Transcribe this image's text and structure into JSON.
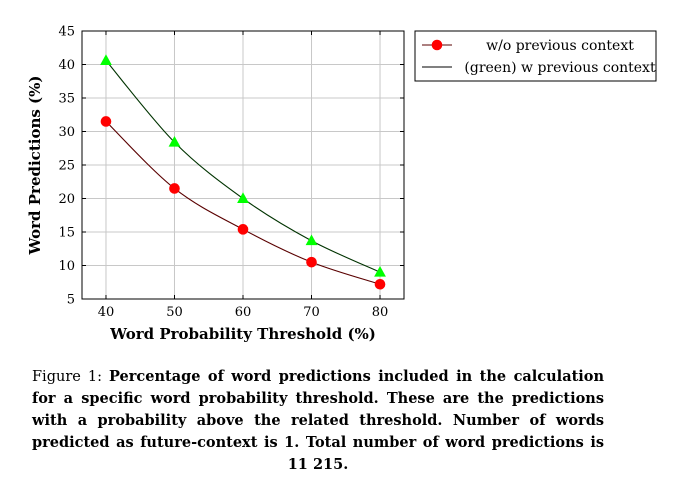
{
  "chart_data": {
    "type": "line",
    "xlabel": "Word Probability Threshold (%)",
    "ylabel": "Word Predictions (%)",
    "x": [
      40,
      50,
      60,
      70,
      80
    ],
    "xlim": [
      36.5,
      83.5
    ],
    "ylim": [
      5,
      45
    ],
    "xticks": [
      40,
      50,
      60,
      70,
      80
    ],
    "yticks": [
      5,
      10,
      15,
      20,
      25,
      30,
      35,
      40,
      45
    ],
    "grid": true,
    "legend_position": "outside-top-right",
    "series": [
      {
        "name": "w/o previous context",
        "values": [
          31.5,
          21.5,
          15.4,
          10.5,
          7.2
        ],
        "line_color": "#5a0000",
        "marker": "circle",
        "marker_color": "#ff0000"
      },
      {
        "name": "(green) w previous context",
        "values": [
          40.6,
          28.4,
          20.0,
          13.7,
          9.0
        ],
        "line_color": "#003300",
        "marker": "triangle",
        "marker_color": "#00ff00"
      }
    ]
  },
  "caption": {
    "prefix": "Figure 1:",
    "text": "Percentage of word predictions included in the calculation for a specific word probability threshold. These are the predictions with a probability above the related threshold. Number of words predicted as future-context is 1. Total number of word predictions is 11 215."
  }
}
